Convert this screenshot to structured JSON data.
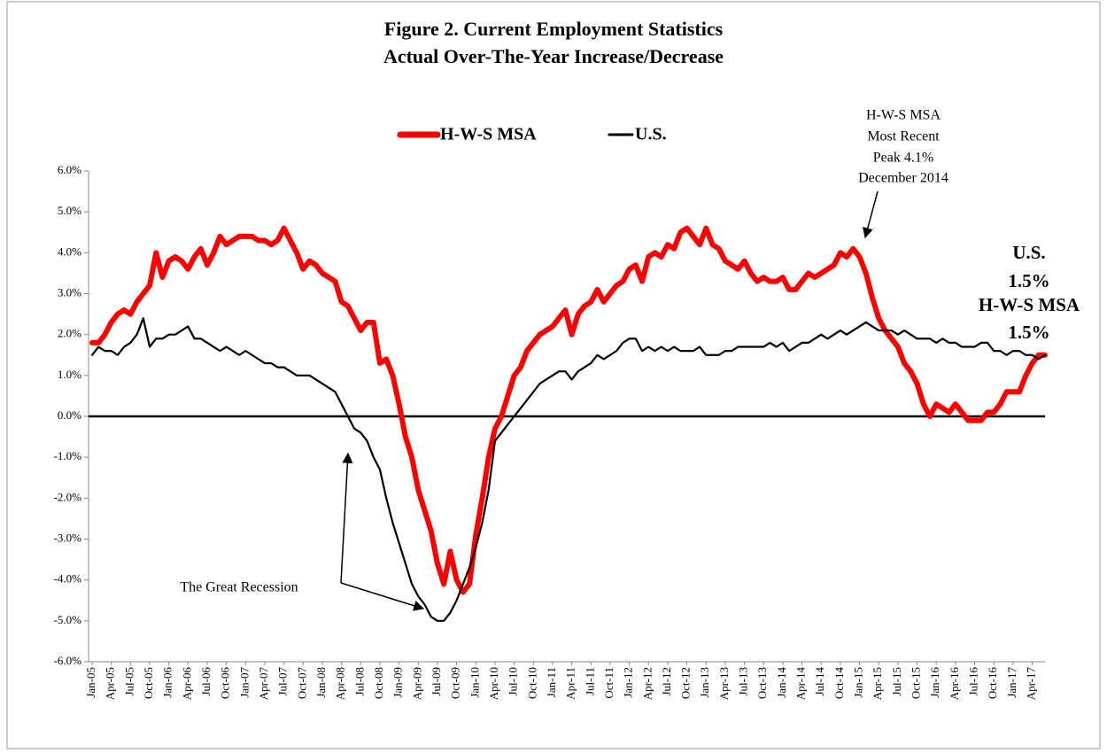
{
  "chart_data": {
    "type": "line",
    "title": [
      "Figure 2. Current Employment Statistics",
      "Actual Over-The-Year Increase/Decrease"
    ],
    "categories": [
      "Jan-05",
      null,
      null,
      "Apr-05",
      null,
      null,
      "Jul-05",
      null,
      null,
      "Oct-05",
      null,
      null,
      "Jan-06",
      null,
      null,
      "Apr-06",
      null,
      null,
      "Jul-06",
      null,
      null,
      "Oct-06",
      null,
      null,
      "Jan-07",
      null,
      null,
      "Apr-07",
      null,
      null,
      "Jul-07",
      null,
      null,
      "Oct-07",
      null,
      null,
      "Jan-08",
      null,
      null,
      "Apr-08",
      null,
      null,
      "Jul-08",
      null,
      null,
      "Oct-08",
      null,
      null,
      "Jan-09",
      null,
      null,
      "Apr-09",
      null,
      null,
      "Jul-09",
      null,
      null,
      "Oct-09",
      null,
      null,
      "Jan-10",
      null,
      null,
      "Apr-10",
      null,
      null,
      "Jul-10",
      null,
      null,
      "Oct-10",
      null,
      null,
      "Jan-11",
      null,
      null,
      "Apr-11",
      null,
      null,
      "Jul-11",
      null,
      null,
      "Oct-11",
      null,
      null,
      "Jan-12",
      null,
      null,
      "Apr-12",
      null,
      null,
      "Jul-12",
      null,
      null,
      "Oct-12",
      null,
      null,
      "Jan-13",
      null,
      null,
      "Apr-13",
      null,
      null,
      "Jul-13",
      null,
      null,
      "Oct-13",
      null,
      null,
      "Jan-14",
      null,
      null,
      "Apr-14",
      null,
      null,
      "Jul-14",
      null,
      null,
      "Oct-14",
      null,
      null,
      "Jan-15",
      null,
      null,
      "Apr-15",
      null,
      null,
      "Jul-15",
      null,
      null,
      "Oct-15",
      null,
      null,
      "Jan-16",
      null,
      null,
      "Apr-16",
      null,
      null,
      "Jul-16",
      null,
      null,
      "Oct-16",
      null,
      null,
      "Jan-17",
      null,
      null,
      "Apr-17",
      null,
      null
    ],
    "series": [
      {
        "name": "H-W-S MSA",
        "color": "#ff0000",
        "values": [
          1.8,
          1.8,
          2.0,
          2.3,
          2.5,
          2.6,
          2.5,
          2.8,
          3.0,
          3.2,
          4.0,
          3.4,
          3.8,
          3.9,
          3.8,
          3.6,
          3.9,
          4.1,
          3.7,
          4.0,
          4.4,
          4.2,
          4.3,
          4.4,
          4.4,
          4.4,
          4.3,
          4.3,
          4.2,
          4.3,
          4.6,
          4.3,
          4.0,
          3.6,
          3.8,
          3.7,
          3.5,
          3.4,
          3.3,
          2.8,
          2.7,
          2.4,
          2.1,
          2.3,
          2.3,
          1.3,
          1.4,
          1.0,
          0.3,
          -0.5,
          -1.0,
          -1.8,
          -2.3,
          -2.8,
          -3.6,
          -4.1,
          -3.3,
          -4.0,
          -4.3,
          -4.1,
          -2.9,
          -2.0,
          -1.0,
          -0.3,
          0.0,
          0.5,
          1.0,
          1.2,
          1.6,
          1.8,
          2.0,
          2.1,
          2.2,
          2.4,
          2.6,
          2.0,
          2.5,
          2.7,
          2.8,
          3.1,
          2.8,
          3.0,
          3.2,
          3.3,
          3.6,
          3.7,
          3.3,
          3.9,
          4.0,
          3.9,
          4.2,
          4.1,
          4.5,
          4.6,
          4.4,
          4.2,
          4.6,
          4.2,
          4.1,
          3.8,
          3.7,
          3.6,
          3.8,
          3.5,
          3.3,
          3.4,
          3.3,
          3.3,
          3.4,
          3.1,
          3.1,
          3.3,
          3.5,
          3.4,
          3.5,
          3.6,
          3.7,
          4.0,
          3.9,
          4.1,
          3.9,
          3.5,
          2.9,
          2.4,
          2.1,
          1.9,
          1.7,
          1.3,
          1.1,
          0.8,
          0.3,
          0.0,
          0.3,
          0.2,
          0.1,
          0.3,
          0.1,
          -0.1,
          -0.1,
          -0.1,
          0.1,
          0.1,
          0.3,
          0.6,
          0.6,
          0.6,
          1.0,
          1.3,
          1.5,
          1.5
        ]
      },
      {
        "name": "U.S.",
        "color": "#000000",
        "values": [
          1.5,
          1.7,
          1.6,
          1.6,
          1.5,
          1.7,
          1.8,
          2.0,
          2.4,
          1.7,
          1.9,
          1.9,
          2.0,
          2.0,
          2.1,
          2.2,
          1.9,
          1.9,
          1.8,
          1.7,
          1.6,
          1.7,
          1.6,
          1.5,
          1.6,
          1.5,
          1.4,
          1.3,
          1.3,
          1.2,
          1.2,
          1.1,
          1.0,
          1.0,
          1.0,
          0.9,
          0.8,
          0.7,
          0.6,
          0.3,
          0.0,
          -0.3,
          -0.4,
          -0.6,
          -1.0,
          -1.3,
          -2.0,
          -2.6,
          -3.1,
          -3.6,
          -4.1,
          -4.4,
          -4.6,
          -4.9,
          -5.0,
          -5.0,
          -4.8,
          -4.5,
          -4.1,
          -3.7,
          -3.2,
          -2.6,
          -1.8,
          -0.6,
          -0.4,
          -0.2,
          0.0,
          0.2,
          0.4,
          0.6,
          0.8,
          0.9,
          1.0,
          1.1,
          1.1,
          0.9,
          1.1,
          1.2,
          1.3,
          1.5,
          1.4,
          1.5,
          1.6,
          1.8,
          1.9,
          1.9,
          1.6,
          1.7,
          1.6,
          1.7,
          1.6,
          1.7,
          1.6,
          1.6,
          1.6,
          1.7,
          1.5,
          1.5,
          1.5,
          1.6,
          1.6,
          1.7,
          1.7,
          1.7,
          1.7,
          1.7,
          1.8,
          1.7,
          1.8,
          1.6,
          1.7,
          1.8,
          1.8,
          1.9,
          2.0,
          1.9,
          2.0,
          2.1,
          2.0,
          2.1,
          2.2,
          2.3,
          2.2,
          2.1,
          2.1,
          2.1,
          2.0,
          2.1,
          2.0,
          1.9,
          1.9,
          1.9,
          1.8,
          1.9,
          1.8,
          1.8,
          1.7,
          1.7,
          1.7,
          1.8,
          1.8,
          1.6,
          1.6,
          1.5,
          1.6,
          1.6,
          1.5,
          1.5,
          1.4,
          1.5
        ]
      }
    ],
    "ylim": [
      -6,
      6
    ],
    "yticks": [
      {
        "value": -6,
        "label": "-6.0%"
      },
      {
        "value": -5,
        "label": "-5.0%"
      },
      {
        "value": -4,
        "label": "-4.0%"
      },
      {
        "value": -3,
        "label": "-3.0%"
      },
      {
        "value": -2,
        "label": "-2.0%"
      },
      {
        "value": -1,
        "label": "-1.0%"
      },
      {
        "value": 0,
        "label": "0.0%"
      },
      {
        "value": 1,
        "label": "1.0%"
      },
      {
        "value": 2,
        "label": "2.0%"
      },
      {
        "value": 3,
        "label": "3.0%"
      },
      {
        "value": 4,
        "label": "4.0%"
      },
      {
        "value": 5,
        "label": "5.0%"
      },
      {
        "value": 6,
        "label": "6.0%"
      }
    ],
    "grid": false,
    "legend": "top",
    "annotations": {
      "peak": [
        "H-W-S MSA",
        "Most Recent",
        "Peak 4.1%",
        "December 2014"
      ],
      "recession": "The Great Recession",
      "end_labels": [
        "U.S.",
        "1.5%",
        "H-W-S MSA",
        "1.5%"
      ]
    }
  }
}
